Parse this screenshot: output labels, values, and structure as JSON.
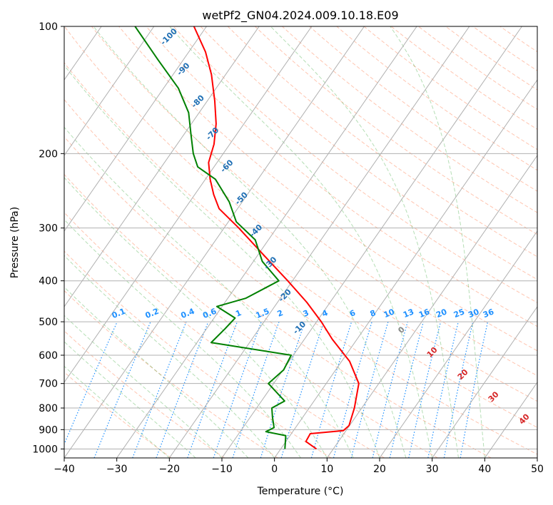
{
  "chart_data": {
    "type": "line",
    "subtype": "skew-t log-p diagram",
    "title": "wetPf2_GN04.2024.009.10.18.E09",
    "xlabel": "Temperature (°C)",
    "ylabel": "Pressure (hPa)",
    "xlim": [
      -40,
      50
    ],
    "ylim": [
      1050,
      100
    ],
    "y_scale": "log",
    "x_ticks": [
      -40,
      -30,
      -20,
      -10,
      0,
      10,
      20,
      30,
      40,
      50
    ],
    "y_ticks": [
      1000,
      900,
      800,
      700,
      600,
      500,
      400,
      300,
      200,
      100
    ],
    "grid": true,
    "colors": {
      "temperature": "#ff0000",
      "dewpoint": "#008000",
      "isotherm": "#b0b0b0",
      "mixing_ratio": "#1e90ff",
      "dry_adiabat": "#ff7f50",
      "moist_adiabat": "#2ca02c"
    },
    "series": [
      {
        "name": "",
        "color": "#ff0000",
        "points": [
          {
            "p": 1000,
            "t": 6.8
          },
          {
            "p": 960,
            "t": 3.8
          },
          {
            "p": 920,
            "t": 3.6
          },
          {
            "p": 905,
            "t": 9.5
          },
          {
            "p": 880,
            "t": 9.9
          },
          {
            "p": 800,
            "t": 8.6
          },
          {
            "p": 700,
            "t": 6.2
          },
          {
            "p": 620,
            "t": 1.5
          },
          {
            "p": 550,
            "t": -4.7
          },
          {
            "p": 500,
            "t": -9.1
          },
          {
            "p": 450,
            "t": -14.4
          },
          {
            "p": 400,
            "t": -20.9
          },
          {
            "p": 350,
            "t": -28.5
          },
          {
            "p": 300,
            "t": -37.2
          },
          {
            "p": 270,
            "t": -43.5
          },
          {
            "p": 250,
            "t": -46.4
          },
          {
            "p": 230,
            "t": -49.1
          },
          {
            "p": 210,
            "t": -51.6
          },
          {
            "p": 190,
            "t": -53.0
          },
          {
            "p": 170,
            "t": -55.3
          },
          {
            "p": 150,
            "t": -58.6
          },
          {
            "p": 130,
            "t": -62.7
          },
          {
            "p": 115,
            "t": -66.8
          },
          {
            "p": 100,
            "t": -72.4
          }
        ]
      },
      {
        "name": "",
        "color": "#008000",
        "points": [
          {
            "p": 1000,
            "t": 0.8
          },
          {
            "p": 930,
            "t": -0.8
          },
          {
            "p": 910,
            "t": -5.1
          },
          {
            "p": 890,
            "t": -4.1
          },
          {
            "p": 840,
            "t": -5.8
          },
          {
            "p": 800,
            "t": -7.1
          },
          {
            "p": 770,
            "t": -5.6
          },
          {
            "p": 700,
            "t": -11.0
          },
          {
            "p": 650,
            "t": -9.9
          },
          {
            "p": 600,
            "t": -10.4
          },
          {
            "p": 560,
            "t": -27.3
          },
          {
            "p": 520,
            "t": -26.5
          },
          {
            "p": 490,
            "t": -26.0
          },
          {
            "p": 460,
            "t": -31.0
          },
          {
            "p": 440,
            "t": -26.6
          },
          {
            "p": 400,
            "t": -22.6
          },
          {
            "p": 360,
            "t": -28.3
          },
          {
            "p": 320,
            "t": -32.5
          },
          {
            "p": 290,
            "t": -38.5
          },
          {
            "p": 260,
            "t": -42.5
          },
          {
            "p": 230,
            "t": -48.1
          },
          {
            "p": 215,
            "t": -53.1
          },
          {
            "p": 200,
            "t": -55.7
          },
          {
            "p": 180,
            "t": -58.7
          },
          {
            "p": 160,
            "t": -62.0
          },
          {
            "p": 140,
            "t": -67.2
          },
          {
            "p": 120,
            "t": -74.8
          },
          {
            "p": 100,
            "t": -83.6
          }
        ]
      }
    ],
    "dry_adiabat_labels": [
      "-100",
      "-90",
      "-80",
      "-70",
      "-60",
      "-50",
      "-40",
      "-30",
      "-20",
      "-10",
      "0",
      "10",
      "20",
      "30",
      "40"
    ],
    "mixing_ratio_labels": [
      "0.1",
      "0.2",
      "0.4",
      "0.6",
      "1",
      "1.5",
      "2",
      "3",
      "4",
      "6",
      "8",
      "10",
      "13",
      "16",
      "20",
      "25",
      "30",
      "36"
    ]
  }
}
